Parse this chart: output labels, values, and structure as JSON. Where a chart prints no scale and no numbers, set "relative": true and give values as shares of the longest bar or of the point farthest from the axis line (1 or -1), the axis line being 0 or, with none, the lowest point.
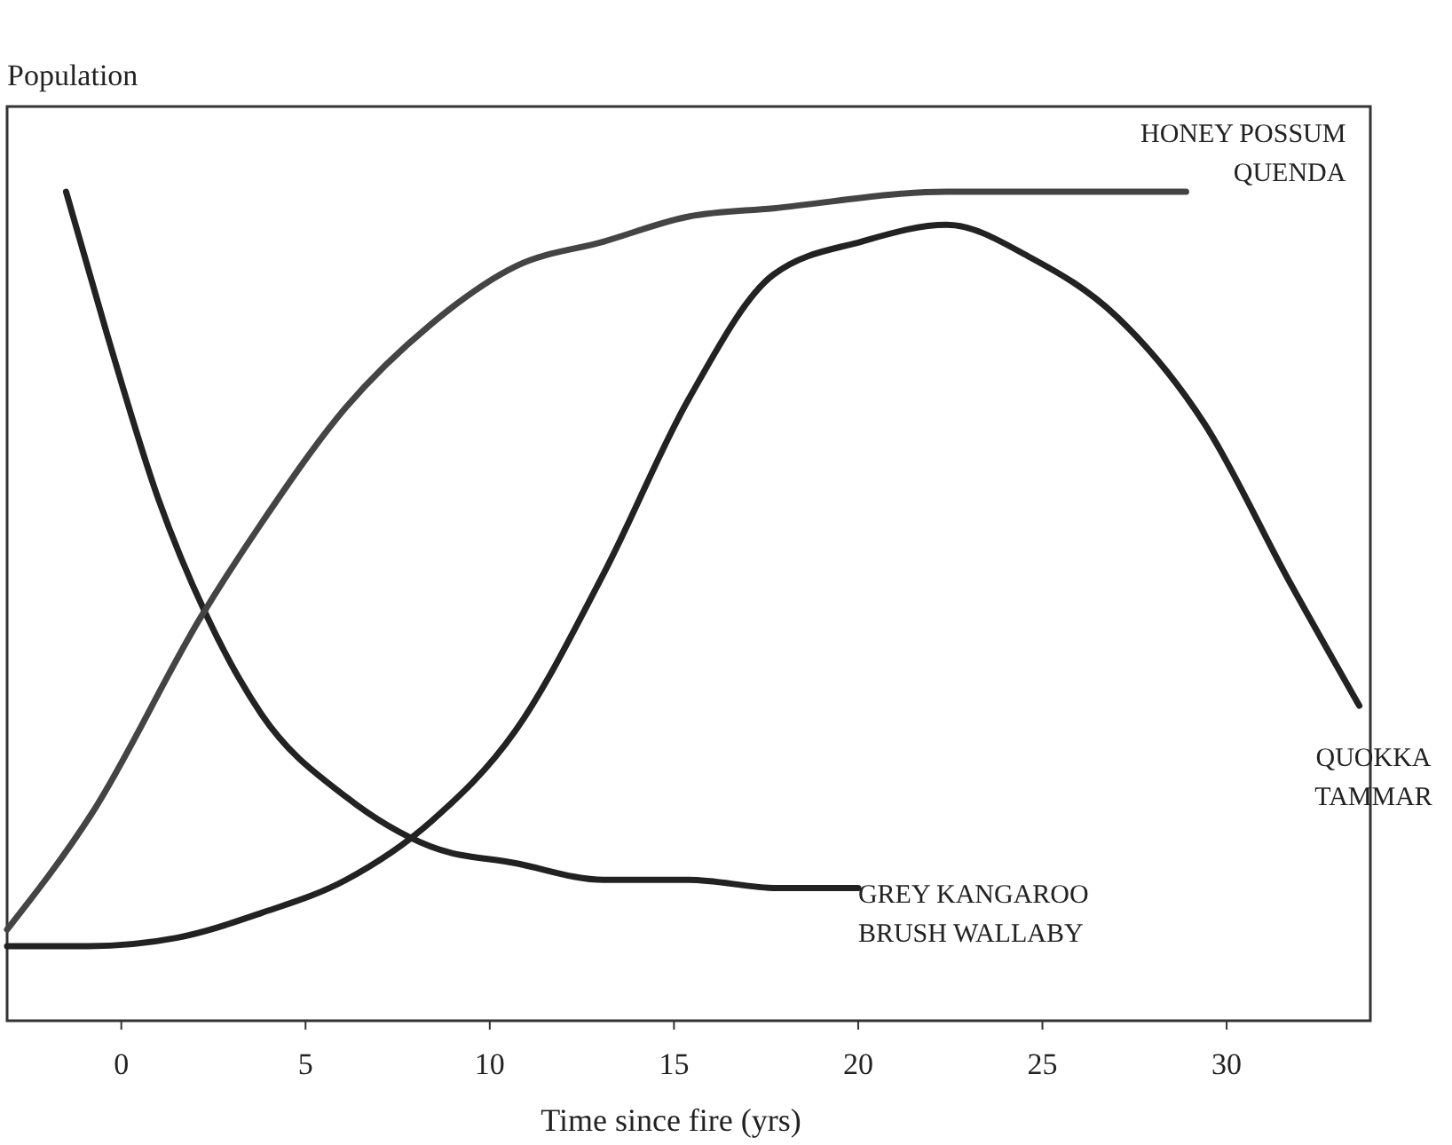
{
  "chart_data": {
    "type": "line",
    "relative": true,
    "xlabel": "Time since fire (yrs)",
    "ylabel": "Population",
    "xlim": [
      -3.1,
      33.9
    ],
    "xticks": [
      0,
      5,
      10,
      15,
      20,
      25,
      30
    ],
    "grid": false,
    "marker": "none",
    "line_style": "solid",
    "series": [
      {
        "name": "GREY KANGAROO\nBRUSH WALLABY",
        "color": "#222222",
        "x": [
          -1.5,
          -0.4,
          1.0,
          2.3,
          3.8,
          6.1,
          8.4,
          10.7,
          13.1,
          15.4,
          17.8,
          20.0
        ],
        "values": [
          1.0,
          0.83,
          0.63,
          0.49,
          0.37,
          0.27,
          0.21,
          0.19,
          0.17,
          0.17,
          0.16,
          0.16
        ]
      },
      {
        "name": "HONEY POSSUM\nQUENDA",
        "color": "#444444",
        "x": [
          -3.1,
          -0.8,
          2.2,
          3.8,
          6.1,
          8.4,
          10.7,
          13.1,
          15.4,
          17.7,
          22.4,
          28.9
        ],
        "values": [
          0.11,
          0.25,
          0.49,
          0.6,
          0.74,
          0.84,
          0.91,
          0.94,
          0.97,
          0.98,
          1.0,
          1.0
        ]
      },
      {
        "name": "QUOKKA\nTAMMAR",
        "color": "#222222",
        "x": [
          -3.1,
          -0.9,
          1.5,
          3.8,
          6.1,
          8.4,
          10.7,
          13.1,
          15.4,
          17.7,
          20.1,
          22.4,
          24.7,
          27.0,
          29.4,
          31.7,
          33.6
        ],
        "values": [
          0.09,
          0.09,
          0.1,
          0.13,
          0.17,
          0.24,
          0.35,
          0.54,
          0.75,
          0.9,
          0.94,
          0.96,
          0.92,
          0.85,
          0.72,
          0.53,
          0.38
        ]
      }
    ]
  }
}
